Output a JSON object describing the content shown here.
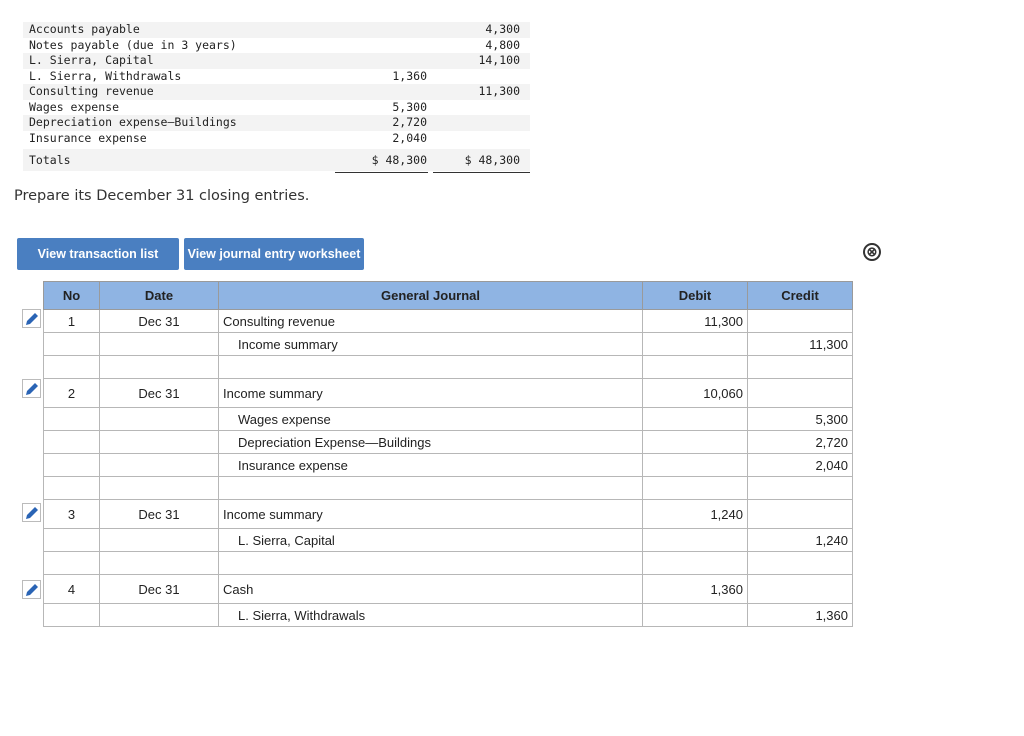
{
  "trial_balance": {
    "rows": [
      {
        "account": "Accounts payable",
        "debit": "",
        "credit": "4,300"
      },
      {
        "account": "Notes payable (due in 3 years)",
        "debit": "",
        "credit": "4,800"
      },
      {
        "account": "L. Sierra, Capital",
        "debit": "",
        "credit": "14,100"
      },
      {
        "account": "L. Sierra, Withdrawals",
        "debit": "1,360",
        "credit": ""
      },
      {
        "account": "Consulting revenue",
        "debit": "",
        "credit": "11,300"
      },
      {
        "account": "Wages expense",
        "debit": "5,300",
        "credit": ""
      },
      {
        "account": "Depreciation expense—Buildings",
        "debit": "2,720",
        "credit": ""
      },
      {
        "account": "Insurance expense",
        "debit": "2,040",
        "credit": ""
      }
    ],
    "totals": {
      "label": "Totals",
      "debit": "$ 48,300",
      "credit": "$ 48,300"
    }
  },
  "prompt": "Prepare its December 31 closing entries.",
  "buttons": {
    "transactions": "View transaction list",
    "worksheet": "View journal entry worksheet"
  },
  "close_icon": "⊗",
  "journal": {
    "headers": {
      "no": "No",
      "date": "Date",
      "account": "General Journal",
      "debit": "Debit",
      "credit": "Credit"
    },
    "entries": [
      {
        "no": "1",
        "date": "Dec 31",
        "lines": [
          {
            "account": "Consulting revenue",
            "debit": "11,300",
            "credit": ""
          },
          {
            "account": "Income summary",
            "debit": "",
            "credit": "11,300"
          }
        ]
      },
      {
        "no": "2",
        "date": "Dec 31",
        "lines": [
          {
            "account": "Income summary",
            "debit": "10,060",
            "credit": ""
          },
          {
            "account": "Wages expense",
            "debit": "",
            "credit": "5,300"
          },
          {
            "account": "Depreciation Expense—Buildings",
            "debit": "",
            "credit": "2,720"
          },
          {
            "account": "Insurance expense",
            "debit": "",
            "credit": "2,040"
          }
        ]
      },
      {
        "no": "3",
        "date": "Dec 31",
        "lines": [
          {
            "account": "Income summary",
            "debit": "1,240",
            "credit": ""
          },
          {
            "account": "L. Sierra, Capital",
            "debit": "",
            "credit": "1,240"
          }
        ]
      },
      {
        "no": "4",
        "date": "Dec 31",
        "lines": [
          {
            "account": "Cash",
            "debit": "1,360",
            "credit": ""
          },
          {
            "account": "L. Sierra, Withdrawals",
            "debit": "",
            "credit": "1,360"
          }
        ]
      }
    ]
  }
}
